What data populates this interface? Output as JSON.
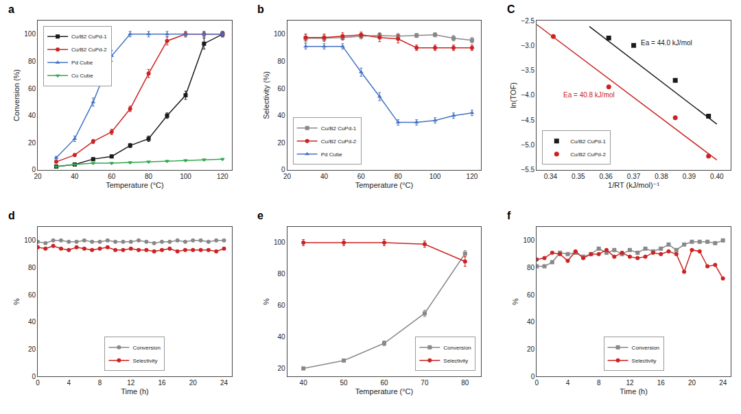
{
  "chart_data": [
    {
      "type": "line",
      "title": "a",
      "xlabel": "Temperature (°C)",
      "ylabel": "Conversion (%)",
      "x": [
        30,
        40,
        50,
        60,
        70,
        80,
        90,
        100,
        110,
        120
      ],
      "series": [
        {
          "name": "Cu/B2 CuPd-1",
          "color": "#1a1a1a",
          "marker": "square",
          "values": [
            2.5,
            4.0,
            8.0,
            10.0,
            18.0,
            23.0,
            40.0,
            55.0,
            93.0,
            100.0
          ],
          "errors": [
            0.5,
            0.5,
            1.0,
            1.0,
            1.5,
            2.0,
            2.0,
            3.0,
            4.0,
            2.0
          ]
        },
        {
          "name": "Cu/B2 CuPd-2",
          "color": "#cc2222",
          "marker": "circle",
          "values": [
            6.0,
            11.0,
            21.0,
            28.0,
            45.0,
            71.0,
            95.0,
            100.0,
            100.0,
            100.0
          ],
          "errors": [
            0.5,
            1.0,
            1.5,
            2.0,
            2.0,
            3.0,
            3.0,
            2.0,
            2.0,
            2.0
          ]
        },
        {
          "name": "Pd Cube",
          "color": "#4472c4",
          "marker": "triangle-up",
          "values": [
            9.0,
            23.0,
            50.0,
            84.0,
            100.0,
            100.0,
            100.0,
            100.0,
            100.0,
            100.0
          ],
          "errors": [
            1.0,
            2.0,
            3.0,
            4.0,
            2.0,
            2.0,
            2.0,
            2.0,
            2.0,
            2.0
          ]
        },
        {
          "name": "Cu Cube",
          "color": "#2ea84a",
          "marker": "triangle-down",
          "values": [
            2.5,
            4.0,
            5.0,
            5.0,
            5.5,
            6.0,
            6.5,
            7.0,
            7.5,
            8.0
          ],
          "errors": [
            0.3,
            0.5,
            0.5,
            0.5,
            0.5,
            0.5,
            0.5,
            0.5,
            0.5,
            0.5
          ]
        }
      ],
      "xlim": [
        20,
        125
      ],
      "xticks": [
        20,
        40,
        60,
        80,
        100,
        120
      ],
      "ylim": [
        0,
        110
      ],
      "yticks": [
        0,
        20,
        40,
        60,
        80,
        100
      ],
      "grid": false,
      "legend": "upper left"
    },
    {
      "type": "line",
      "title": "b",
      "xlabel": "Temperature (°C)",
      "ylabel": "Selectivity (%)",
      "x": [
        30,
        40,
        50,
        60,
        70,
        80,
        90,
        100,
        110,
        120
      ],
      "series": [
        {
          "name": "Cu/B2 CuPd-1",
          "color": "#888888",
          "marker": "square",
          "values": [
            97.0,
            97.0,
            97.5,
            98.5,
            99.0,
            98.5,
            99.0,
            99.5,
            97.0,
            95.5
          ],
          "errors": [
            3.0,
            2.5,
            2.0,
            2.0,
            2.0,
            2.0,
            1.5,
            1.5,
            2.0,
            2.0
          ]
        },
        {
          "name": "Cu/B2 CuPd-2",
          "color": "#cc2222",
          "marker": "circle",
          "values": [
            97.5,
            97.5,
            98.5,
            99.5,
            97.5,
            96.5,
            90.0,
            90.0,
            90.0,
            90.0
          ],
          "errors": [
            2.5,
            2.5,
            2.5,
            2.0,
            3.0,
            3.0,
            2.0,
            2.0,
            2.0,
            2.0
          ]
        },
        {
          "name": "Pd Cube",
          "color": "#4472c4",
          "marker": "triangle-up",
          "values": [
            91.0,
            91.0,
            91.0,
            72.0,
            54.0,
            35.0,
            35.0,
            36.5,
            40.0,
            42.0
          ],
          "errors": [
            2.0,
            2.0,
            2.0,
            3.0,
            3.0,
            2.0,
            2.0,
            2.0,
            2.0,
            2.0
          ]
        }
      ],
      "xlim": [
        20,
        125
      ],
      "xticks": [
        20,
        40,
        60,
        80,
        100,
        120
      ],
      "ylim": [
        0,
        110
      ],
      "yticks": [
        0,
        20,
        40,
        60,
        80,
        100
      ],
      "grid": false,
      "legend": "lower left"
    },
    {
      "type": "scatter",
      "title": "C",
      "xlabel": "1/RT (kJ/mol)⁻¹",
      "ylabel": "ln(TOF)",
      "series": [
        {
          "name": "Cu/B2 CuPd-1",
          "type": "scatter",
          "color": "#1a1a1a",
          "marker": "square",
          "x": [
            0.361,
            0.37,
            0.385,
            0.397
          ],
          "values": [
            -2.85,
            -3.0,
            -3.7,
            -4.42
          ]
        },
        {
          "name": "Cu/B2 CuPd-2",
          "type": "scatter",
          "color": "#cc2222",
          "marker": "circle",
          "x": [
            0.341,
            0.361,
            0.385,
            0.397
          ],
          "values": [
            -2.82,
            -3.83,
            -4.45,
            -5.22
          ]
        },
        {
          "type": "line",
          "color": "#1a1a1a",
          "x": [
            0.354,
            0.4
          ],
          "values": [
            -2.62,
            -4.58
          ]
        },
        {
          "type": "line",
          "color": "#cc2222",
          "x": [
            0.335,
            0.4
          ],
          "values": [
            -2.58,
            -5.3
          ]
        }
      ],
      "annotations": [
        {
          "text": "Ea = 44.0 kJ/mol",
          "x": 0.372,
          "y": -3.05,
          "color": "#1a1a1a"
        },
        {
          "text": "Ea = 40.8 kJ/mol",
          "x": 0.344,
          "y": -4.1,
          "color": "#cc2222"
        }
      ],
      "xlim": [
        0.335,
        0.405
      ],
      "xticks": [
        0.34,
        0.35,
        0.36,
        0.37,
        0.38,
        0.39,
        {
          "value": 0.4,
          "label": "0.40"
        }
      ],
      "ylim": [
        -5.5,
        -2.5
      ],
      "yticks": [
        {
          "value": -5.5,
          "label": "−5.5"
        },
        {
          "value": -5.0,
          "label": "−5.0"
        },
        {
          "value": -4.5,
          "label": "−4.5"
        },
        {
          "value": -4.0,
          "label": "−4.0"
        },
        {
          "value": -3.5,
          "label": "−3.5"
        },
        {
          "value": -3.0,
          "label": "−3.0"
        },
        {
          "value": -2.5,
          "label": "−2.5"
        }
      ],
      "grid": false,
      "legend": "lower left"
    },
    {
      "type": "line",
      "title": "d",
      "xlabel": "Time (h)",
      "ylabel": "%",
      "x": [
        0,
        1,
        2,
        3,
        4,
        5,
        6,
        7,
        8,
        9,
        10,
        11,
        12,
        13,
        14,
        15,
        16,
        17,
        18,
        19,
        20,
        21,
        22,
        23,
        24
      ],
      "series": [
        {
          "name": "Conversion",
          "color": "#888888",
          "marker": "circle",
          "values": [
            99,
            98,
            100,
            100,
            99,
            99,
            100,
            99,
            99,
            100,
            99,
            99,
            99,
            100,
            99,
            98,
            99,
            99,
            100,
            99,
            100,
            100,
            99,
            100,
            100
          ]
        },
        {
          "name": "Selectivity",
          "color": "#cc2222",
          "marker": "circle",
          "values": [
            95,
            94,
            96,
            94,
            93,
            95,
            94,
            93,
            94,
            95,
            93,
            93,
            94,
            93,
            93,
            92,
            93,
            94,
            92,
            93,
            93,
            93,
            93,
            92,
            94
          ]
        }
      ],
      "xlim": [
        0,
        25
      ],
      "xticks": [
        0,
        4,
        8,
        12,
        16,
        20,
        24
      ],
      "ylim": [
        0,
        110
      ],
      "yticks": [
        0,
        20,
        40,
        60,
        80,
        100
      ],
      "grid": false,
      "legend": "lower center"
    },
    {
      "type": "line",
      "title": "e",
      "xlabel": "Temperature (°C)",
      "ylabel": "%",
      "x": [
        40,
        50,
        60,
        70,
        80
      ],
      "series": [
        {
          "name": "Conversion",
          "color": "#888888",
          "marker": "square",
          "values": [
            20,
            25,
            36,
            55,
            93
          ],
          "errors": [
            0.5,
            1.0,
            1.5,
            2.0,
            2.0
          ]
        },
        {
          "name": "Selectivity",
          "color": "#cc2222",
          "marker": "circle",
          "values": [
            100,
            100,
            100,
            99,
            88
          ],
          "errors": [
            2.0,
            2.0,
            2.0,
            2.0,
            3.0
          ]
        }
      ],
      "xlim": [
        36,
        84
      ],
      "xticks": [
        40,
        50,
        60,
        70,
        80
      ],
      "ylim": [
        15,
        110
      ],
      "yticks": [
        20,
        40,
        60,
        80,
        100
      ],
      "grid": false,
      "legend": "lower right"
    },
    {
      "type": "line",
      "title": "f",
      "xlabel": "Time (h)",
      "ylabel": "%",
      "x": [
        0,
        1,
        2,
        3,
        4,
        5,
        6,
        7,
        8,
        9,
        10,
        11,
        12,
        13,
        14,
        15,
        16,
        17,
        18,
        19,
        20,
        21,
        22,
        23,
        24
      ],
      "series": [
        {
          "name": "Conversion",
          "color": "#888888",
          "marker": "square",
          "values": [
            81,
            81,
            84,
            91,
            90,
            91,
            88,
            90,
            94,
            91,
            93,
            90,
            93,
            91,
            94,
            92,
            94,
            97,
            93,
            97,
            99,
            99,
            99,
            98,
            100
          ]
        },
        {
          "name": "Selectivity",
          "color": "#cc2222",
          "marker": "circle",
          "values": [
            86,
            87,
            91,
            90,
            85,
            92,
            87,
            90,
            90,
            93,
            88,
            91,
            88,
            87,
            88,
            91,
            90,
            92,
            90,
            77,
            93,
            92,
            81,
            82,
            72
          ]
        }
      ],
      "xlim": [
        0,
        25
      ],
      "xticks": [
        0,
        4,
        8,
        12,
        16,
        20,
        24
      ],
      "ylim": [
        0,
        110
      ],
      "yticks": [
        0,
        20,
        40,
        60,
        80,
        100
      ],
      "grid": false,
      "legend": "lower center"
    }
  ]
}
